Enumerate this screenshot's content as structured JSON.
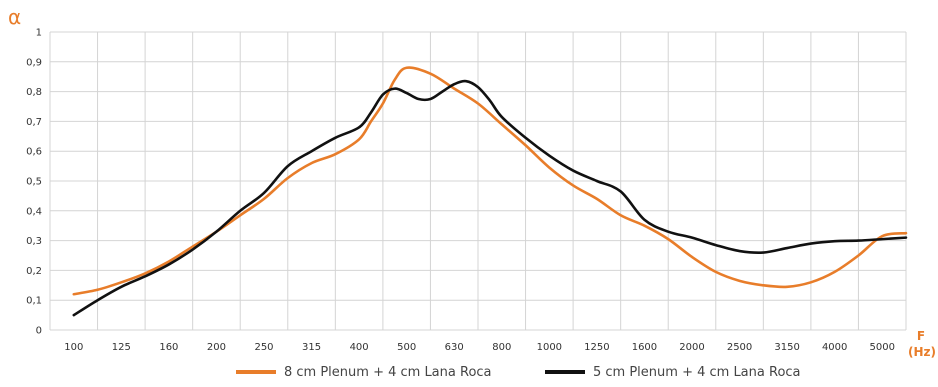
{
  "chart_data": {
    "type": "line",
    "ylabel": "α",
    "xlabel_line1": "F",
    "xlabel_line2": "(Hz)",
    "ylim": [
      0,
      1
    ],
    "yticks": [
      "0",
      "0,1",
      "0,2",
      "0,3",
      "0,4",
      "0,5",
      "0,6",
      "0,7",
      "0,8",
      "0,9",
      "1"
    ],
    "categories": [
      "100",
      "125",
      "160",
      "200",
      "250",
      "315",
      "400",
      "500",
      "630",
      "800",
      "1000",
      "1250",
      "1600",
      "2000",
      "2500",
      "3150",
      "4000",
      "5000"
    ],
    "grid": true,
    "legend_position": "bottom",
    "series": [
      {
        "name": "8 cm Plenum + 4 cm Lana Roca",
        "color": "#e87d2a",
        "x": [
          0,
          0.5,
          1,
          1.5,
          2,
          2.5,
          3,
          3.5,
          4,
          4.5,
          5,
          5.5,
          6,
          6.25,
          6.5,
          6.75,
          7,
          7.5,
          8,
          8.5,
          9,
          9.5,
          10,
          10.5,
          11,
          11.5,
          12,
          12.5,
          13,
          13.5,
          14,
          14.5,
          15,
          15.5,
          16,
          16.5,
          17,
          17.5
        ],
        "values": [
          0.12,
          0.135,
          0.16,
          0.19,
          0.23,
          0.28,
          0.33,
          0.385,
          0.44,
          0.51,
          0.56,
          0.59,
          0.64,
          0.7,
          0.76,
          0.84,
          0.88,
          0.86,
          0.81,
          0.76,
          0.69,
          0.62,
          0.545,
          0.485,
          0.44,
          0.385,
          0.35,
          0.305,
          0.245,
          0.195,
          0.165,
          0.15,
          0.145,
          0.16,
          0.195,
          0.25,
          0.315,
          0.325
        ]
      },
      {
        "name": "5 cm Plenum + 4 cm Lana Roca",
        "color": "#111111",
        "x": [
          0,
          0.5,
          1,
          1.5,
          2,
          2.5,
          3,
          3.5,
          4,
          4.5,
          5,
          5.5,
          6,
          6.25,
          6.5,
          6.75,
          7,
          7.25,
          7.5,
          7.75,
          8,
          8.25,
          8.5,
          8.75,
          9,
          9.5,
          10,
          10.5,
          11,
          11.5,
          12,
          12.5,
          13,
          13.5,
          14,
          14.5,
          15,
          15.5,
          16,
          16.5,
          17,
          17.5
        ],
        "values": [
          0.05,
          0.1,
          0.145,
          0.18,
          0.22,
          0.27,
          0.33,
          0.4,
          0.46,
          0.55,
          0.6,
          0.645,
          0.68,
          0.73,
          0.79,
          0.81,
          0.795,
          0.775,
          0.775,
          0.8,
          0.825,
          0.835,
          0.815,
          0.77,
          0.715,
          0.645,
          0.585,
          0.535,
          0.5,
          0.465,
          0.37,
          0.33,
          0.31,
          0.285,
          0.265,
          0.26,
          0.275,
          0.29,
          0.298,
          0.3,
          0.305,
          0.31
        ]
      }
    ]
  }
}
